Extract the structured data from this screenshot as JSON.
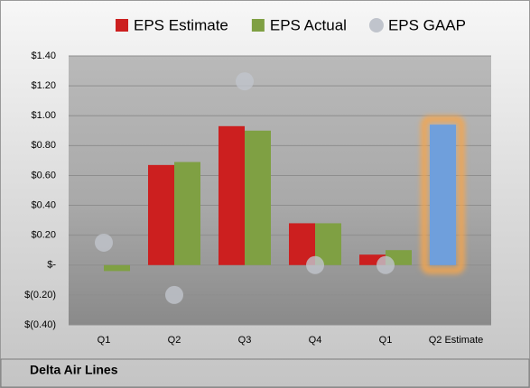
{
  "chart_data": {
    "type": "bar",
    "categories": [
      "Q1",
      "Q2",
      "Q3",
      "Q4",
      "Q1",
      "Q2 Estimate"
    ],
    "series": [
      {
        "name": "EPS Estimate",
        "color": "#cc1f1f",
        "values": [
          null,
          0.67,
          0.93,
          0.28,
          0.07,
          0.94
        ]
      },
      {
        "name": "EPS Actual",
        "color": "#7fa043",
        "values": [
          -0.04,
          0.69,
          0.9,
          0.28,
          0.1,
          null
        ]
      },
      {
        "name": "EPS GAAP",
        "color": "#c0c4cc",
        "marker": "circle",
        "values": [
          0.15,
          -0.2,
          1.23,
          0.0,
          0.0,
          null
        ]
      }
    ],
    "highlight": {
      "series": 0,
      "index": 5,
      "color": "#6f9fdc",
      "glow": "#f4a64c"
    },
    "ylim": [
      -0.4,
      1.4
    ],
    "yticks": [
      {
        "value": -0.4,
        "label": "$(0.40)"
      },
      {
        "value": -0.2,
        "label": "$(0.20)"
      },
      {
        "value": 0,
        "label": "$-"
      },
      {
        "value": 0.2,
        "label": "$0.20"
      },
      {
        "value": 0.4,
        "label": "$0.40"
      },
      {
        "value": 0.6,
        "label": "$0.60"
      },
      {
        "value": 0.8,
        "label": "$0.80"
      },
      {
        "value": 1.0,
        "label": "$1.00"
      },
      {
        "value": 1.2,
        "label": "$1.20"
      },
      {
        "value": 1.4,
        "label": "$1.40"
      }
    ],
    "grid": true,
    "legend": "top",
    "footer": "Delta Air Lines"
  }
}
